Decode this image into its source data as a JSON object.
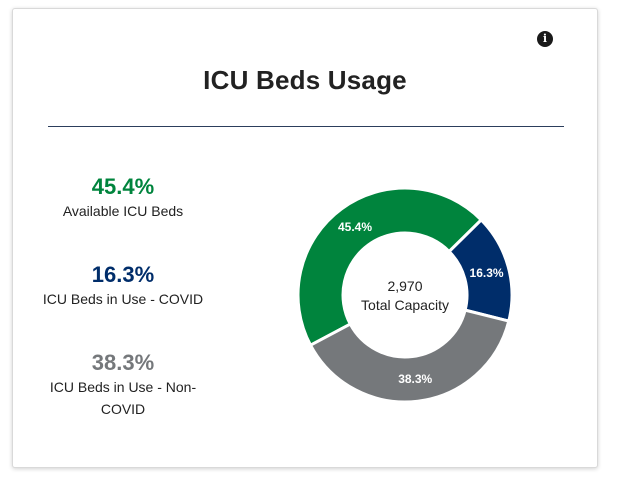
{
  "card": {
    "title": "ICU Beds Usage",
    "info_icon": "info-icon"
  },
  "stats": [
    {
      "value": "45.4%",
      "label": "Available ICU Beds",
      "color": "#00843d"
    },
    {
      "value": "16.3%",
      "label": "ICU Beds in Use - COVID",
      "color": "#002d6a"
    },
    {
      "value": "38.3%",
      "label": "ICU Beds in Use - Non-COVID",
      "color": "#75787b"
    }
  ],
  "chart_data": {
    "type": "pie",
    "categories": [
      "Available ICU Beds",
      "ICU Beds in Use - COVID",
      "ICU Beds in Use - Non-COVID"
    ],
    "values": [
      45.4,
      16.3,
      38.3
    ],
    "labels": [
      "45.4%",
      "16.3%",
      "38.3%"
    ],
    "colors": [
      "#00843d",
      "#002d6a",
      "#75787b"
    ],
    "center_value": "2,970",
    "center_label": "Total Capacity"
  }
}
